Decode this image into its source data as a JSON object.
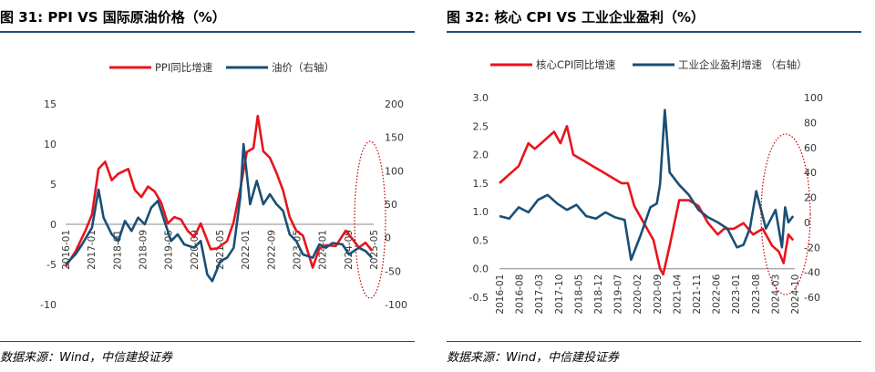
{
  "colors": {
    "red": "#e8141c",
    "blue": "#1a4f75",
    "rule": "#1f4e79",
    "circle": "#c00000"
  },
  "chart_data": [
    {
      "type": "line",
      "title": "图 31: PPI VS 国际原油价格（%）",
      "source": "数据来源：Wind，中信建投证券",
      "legend_position": "top",
      "grid": false,
      "y_left": {
        "min": -10,
        "max": 15,
        "ticks": [
          "15",
          "10",
          "5",
          "0",
          "-5",
          "-10"
        ]
      },
      "y_right": {
        "min": -100,
        "max": 200,
        "ticks": [
          "200",
          "150",
          "100",
          "50",
          "0",
          "-50",
          "-100"
        ]
      },
      "x_range": [
        2016.0,
        2025.35
      ],
      "x_ticks": [
        "2016-01",
        "2017-01",
        "2018-01",
        "2018-09",
        "2019-05",
        "2020-09",
        "2021-05",
        "2022-01",
        "2022-09",
        "2023-05",
        "2024-01",
        "2024-09",
        "2025-05"
      ],
      "series": [
        {
          "name": "PPI同比增速",
          "axis": "left",
          "color": "#e8141c",
          "x": [
            2016.0,
            2016.3,
            2016.6,
            2016.8,
            2017.0,
            2017.2,
            2017.4,
            2017.6,
            2017.9,
            2018.1,
            2018.3,
            2018.5,
            2018.7,
            2018.9,
            2019.1,
            2019.3,
            2019.5,
            2019.7,
            2019.9,
            2020.1,
            2020.4,
            2020.6,
            2020.9,
            2021.1,
            2021.3,
            2021.5,
            2021.7,
            2021.83,
            2022.0,
            2022.2,
            2022.4,
            2022.6,
            2022.8,
            2023.0,
            2023.2,
            2023.5,
            2023.7,
            2023.9,
            2024.2,
            2024.5,
            2024.7,
            2024.9,
            2025.1,
            2025.3
          ],
          "y": [
            -5.3,
            -3.4,
            -0.8,
            1.2,
            6.9,
            7.8,
            5.5,
            6.3,
            6.9,
            4.3,
            3.4,
            4.7,
            4.1,
            2.7,
            0.1,
            0.9,
            0.6,
            -0.8,
            -1.6,
            0.1,
            -3.1,
            -3.0,
            -2.1,
            0.3,
            4.4,
            9.0,
            9.5,
            13.5,
            9.1,
            8.3,
            6.4,
            4.2,
            0.9,
            -0.8,
            -1.4,
            -5.4,
            -3.0,
            -2.6,
            -2.7,
            -0.8,
            -1.8,
            -2.9,
            -2.3,
            -3.3
          ]
        },
        {
          "name": "油价（右轴）",
          "axis": "right",
          "color": "#1a4f75",
          "x": [
            2016.0,
            2016.3,
            2016.5,
            2016.8,
            2017.0,
            2017.15,
            2017.4,
            2017.6,
            2017.8,
            2018.0,
            2018.2,
            2018.4,
            2018.6,
            2018.8,
            2019.0,
            2019.2,
            2019.4,
            2019.6,
            2019.9,
            2020.1,
            2020.3,
            2020.45,
            2020.7,
            2020.9,
            2021.1,
            2021.3,
            2021.4,
            2021.6,
            2021.8,
            2022.0,
            2022.2,
            2022.4,
            2022.6,
            2022.8,
            2023.0,
            2023.2,
            2023.5,
            2023.7,
            2023.9,
            2024.1,
            2024.4,
            2024.6,
            2024.9,
            2025.1,
            2025.3
          ],
          "y": [
            -40,
            -25,
            -10,
            15,
            72,
            30,
            5,
            -5,
            25,
            10,
            30,
            20,
            45,
            55,
            25,
            -5,
            5,
            -10,
            -15,
            -5,
            -55,
            -65,
            -35,
            -30,
            -15,
            60,
            140,
            50,
            85,
            50,
            65,
            50,
            40,
            5,
            -5,
            -25,
            -30,
            -10,
            -15,
            -8,
            -10,
            -25,
            -15,
            -20,
            -30
          ]
        },
        {
          "name": "",
          "axis": "none",
          "color": "#c00000",
          "x": [],
          "y": []
        }
      ],
      "ellipse_style": "dotted",
      "ellipse_color": "#c00000"
    },
    {
      "type": "line",
      "title": "图 32: 核心 CPI VS 工业企业盈利（%）",
      "source": "数据来源：Wind，中信建投证券",
      "legend_position": "top",
      "grid": false,
      "y_left": {
        "min": -0.5,
        "max": 3.0,
        "ticks": [
          "3.0",
          "2.5",
          "2.0",
          "1.5",
          "1.0",
          "0.5",
          "0.0",
          "-0.5"
        ]
      },
      "y_right": {
        "min": -60,
        "max": 100,
        "ticks": [
          "100",
          "80",
          "60",
          "40",
          "20",
          "0",
          "-20",
          "-40",
          "-60"
        ]
      },
      "x_range": [
        2016.0,
        2025.2
      ],
      "x_ticks": [
        "2016-01",
        "2016-08",
        "2017-03",
        "2017-10",
        "2018-05",
        "2018-12",
        "2019-07",
        "2020-02",
        "2020-09",
        "2021-04",
        "2021-11",
        "2022-06",
        "2023-01",
        "2023-08",
        "2024-03",
        "2024-10"
      ],
      "series": [
        {
          "name": "核心CPI同比增速",
          "axis": "left",
          "color": "#e8141c",
          "x": [
            2016.0,
            2016.2,
            2016.4,
            2016.6,
            2016.9,
            2017.1,
            2017.3,
            2017.5,
            2017.7,
            2017.9,
            2018.1,
            2018.3,
            2018.6,
            2018.9,
            2019.2,
            2019.5,
            2019.8,
            2020.0,
            2020.2,
            2020.5,
            2020.8,
            2021.0,
            2021.1,
            2021.3,
            2021.6,
            2021.9,
            2022.2,
            2022.5,
            2022.8,
            2023.0,
            2023.3,
            2023.6,
            2023.9,
            2024.2,
            2024.5,
            2024.7,
            2024.85,
            2025.0,
            2025.15
          ],
          "y": [
            1.5,
            1.6,
            1.7,
            1.8,
            2.2,
            2.1,
            2.2,
            2.3,
            2.4,
            2.2,
            2.5,
            2.0,
            1.9,
            1.8,
            1.7,
            1.6,
            1.5,
            1.5,
            1.1,
            0.8,
            0.5,
            0.0,
            -0.1,
            0.4,
            1.2,
            1.2,
            1.1,
            0.8,
            0.6,
            0.7,
            0.7,
            0.8,
            0.6,
            0.7,
            0.4,
            0.3,
            0.1,
            0.6,
            0.5
          ]
        },
        {
          "name": "工业企业盈利增速 （右轴）",
          "axis": "right",
          "color": "#1a4f75",
          "x": [
            2016.0,
            2016.3,
            2016.6,
            2016.9,
            2017.2,
            2017.5,
            2017.8,
            2018.1,
            2018.4,
            2018.7,
            2019.0,
            2019.3,
            2019.6,
            2019.9,
            2020.1,
            2020.4,
            2020.7,
            2020.9,
            2021.0,
            2021.15,
            2021.3,
            2021.6,
            2021.9,
            2022.2,
            2022.5,
            2022.8,
            2023.1,
            2023.4,
            2023.6,
            2023.8,
            2024.0,
            2024.3,
            2024.6,
            2024.8,
            2024.9,
            2025.0,
            2025.15
          ],
          "y": [
            5,
            3,
            12,
            8,
            18,
            22,
            15,
            10,
            14,
            5,
            3,
            8,
            4,
            2,
            -30,
            -10,
            12,
            15,
            30,
            90,
            40,
            30,
            22,
            10,
            4,
            0,
            -5,
            -20,
            -18,
            -5,
            25,
            -5,
            10,
            -20,
            12,
            0,
            5
          ]
        },
        {
          "name": "",
          "axis": "none",
          "color": "#c00000",
          "x": [],
          "y": []
        }
      ],
      "ellipse_style": "dotted",
      "ellipse_color": "#c00000"
    }
  ]
}
